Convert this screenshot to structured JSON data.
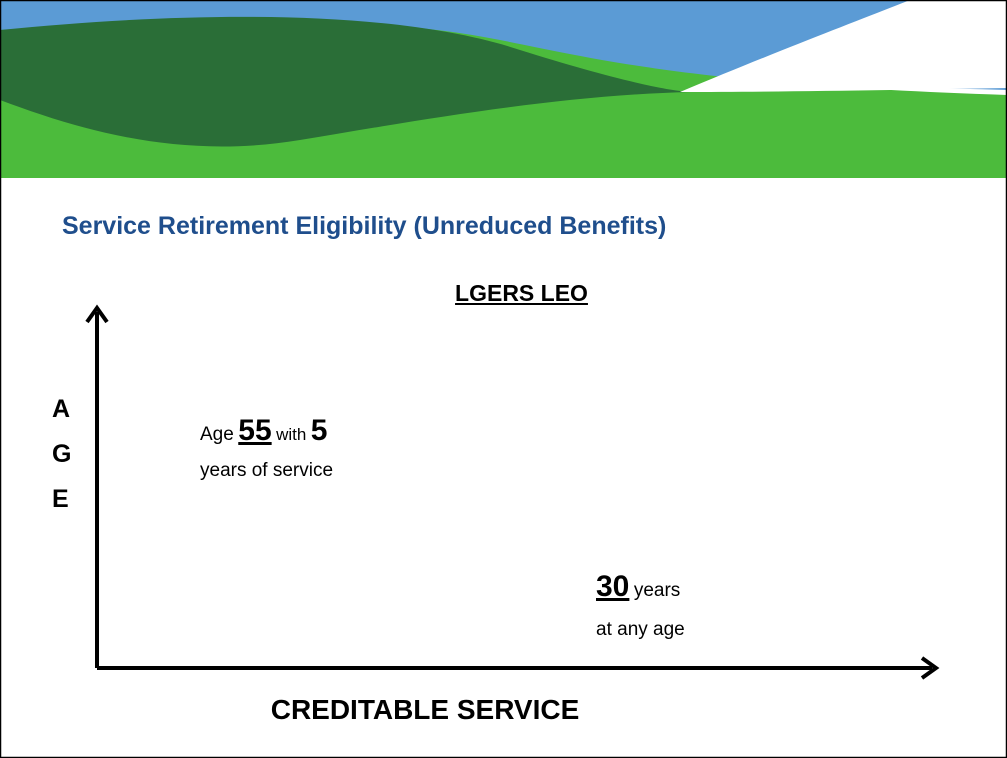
{
  "title": "Service Retirement Eligibility (Unreduced Benefits)",
  "subtitle": "LGERS LEO",
  "y_axis_label": [
    "A",
    "G",
    "E"
  ],
  "x_axis_label": "CREDITABLE SERVICE",
  "annotations": [
    {
      "prefix": "Age",
      "age": 55,
      "middle": "with",
      "years": 5,
      "line2": "years of service"
    },
    {
      "years": 30,
      "suffix": "years",
      "line2": "at any age"
    }
  ]
}
